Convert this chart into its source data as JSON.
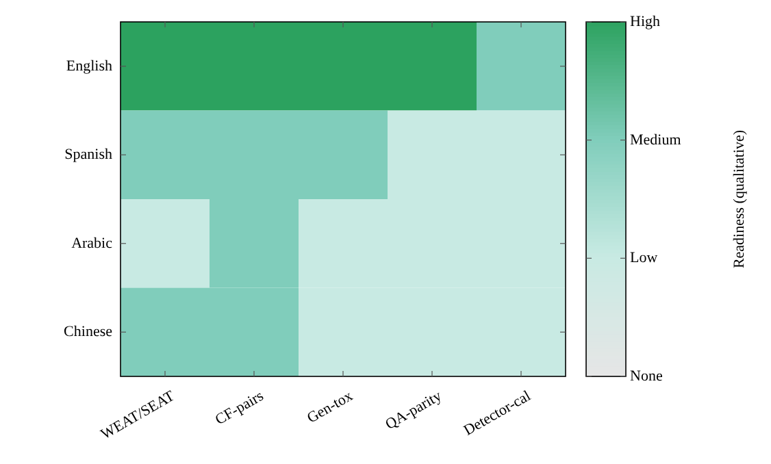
{
  "chart_data": {
    "type": "heatmap",
    "categories": [
      "WEAT/SEAT",
      "CF-pairs",
      "Gen-tox",
      "QA-parity",
      "Detector-cal"
    ],
    "y_categories": [
      "English",
      "Spanish",
      "Arabic",
      "Chinese"
    ],
    "cells": [
      [
        3,
        3,
        3,
        3,
        2
      ],
      [
        2,
        2,
        2,
        1,
        1
      ],
      [
        1,
        2,
        1,
        1,
        1
      ],
      [
        2,
        2,
        1,
        1,
        1
      ]
    ],
    "clim": [
      0,
      3
    ],
    "cticks": [
      {
        "value": 0,
        "label": "None"
      },
      {
        "value": 1,
        "label": "Low"
      },
      {
        "value": 2,
        "label": "Medium"
      },
      {
        "value": 3,
        "label": "High"
      }
    ],
    "colors": [
      "#e6e6e6",
      "#c8eae3",
      "#80cdbb",
      "#2ca25f"
    ],
    "clabel": "Readiness (qualitative)"
  }
}
